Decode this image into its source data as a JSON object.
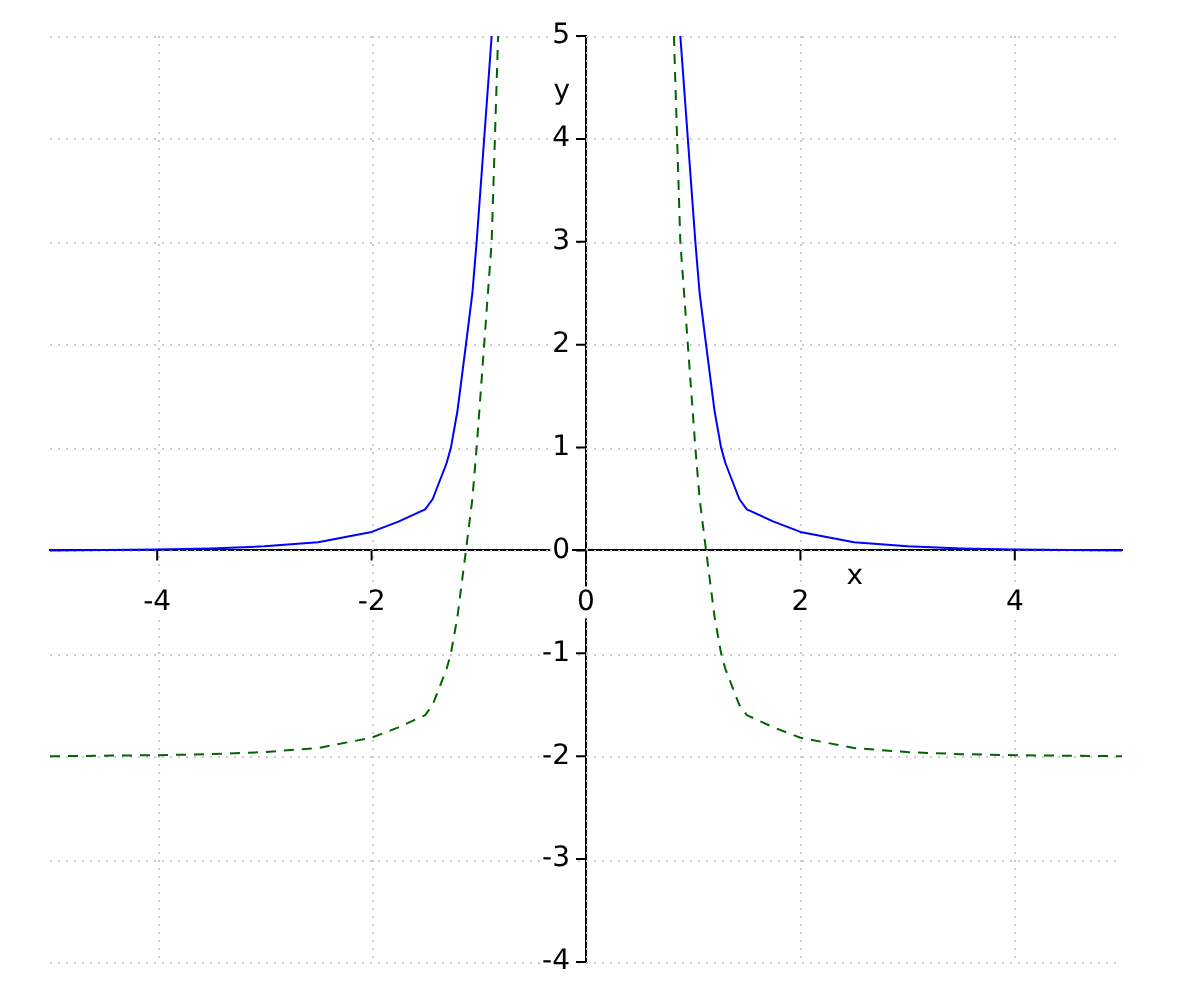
{
  "chart_data": {
    "type": "line",
    "xlabel": "x",
    "ylabel": "y",
    "xlim": [
      -5,
      5
    ],
    "ylim": [
      -4,
      5
    ],
    "xticks": [
      -4,
      -2,
      0,
      2,
      4
    ],
    "yticks": [
      -4,
      -3,
      -2,
      -1,
      0,
      1,
      2,
      3,
      4,
      5
    ],
    "grid": true,
    "legend": false,
    "marker": "none",
    "series": [
      {
        "color": "#0000ff",
        "line_style": "solid",
        "x": [
          -5,
          -4,
          -3.5,
          -3,
          -2.5,
          -2,
          -1.75,
          -1.5,
          -1.43,
          -1.3,
          -1.26,
          -1.2,
          -1.12,
          -1.06,
          -1.02,
          -0.95,
          -0.88,
          0,
          0.88,
          0.95,
          1.02,
          1.06,
          1.12,
          1.2,
          1.26,
          1.3,
          1.43,
          1.5,
          1.75,
          2,
          2.5,
          3,
          3.5,
          4,
          5
        ],
        "values": [
          0,
          0.01,
          0.02,
          0.04,
          0.08,
          0.18,
          0.28,
          0.4,
          0.5,
          0.85,
          1,
          1.35,
          2,
          2.5,
          3,
          4,
          5,
          null,
          5,
          4,
          3,
          2.5,
          2,
          1.35,
          1,
          0.85,
          0.5,
          0.4,
          0.28,
          0.18,
          0.08,
          0.04,
          0.02,
          0.01,
          0
        ]
      },
      {
        "color": "#006400",
        "line_style": "dashed",
        "x": [
          -5,
          -4,
          -3.5,
          -3,
          -2.5,
          -2,
          -1.75,
          -1.5,
          -1.43,
          -1.3,
          -1.26,
          -1.2,
          -1.12,
          -1.06,
          -1.02,
          -0.95,
          -0.88,
          -0.85,
          -0.82,
          0,
          0.82,
          0.85,
          0.88,
          0.95,
          1.02,
          1.06,
          1.12,
          1.2,
          1.26,
          1.3,
          1.43,
          1.5,
          1.75,
          2,
          2.5,
          3,
          3.5,
          4,
          5
        ],
        "values": [
          -2,
          -1.99,
          -1.98,
          -1.96,
          -1.92,
          -1.82,
          -1.72,
          -1.6,
          -1.5,
          -1.15,
          -1,
          -0.65,
          0,
          0.5,
          1,
          2,
          3,
          4,
          5,
          null,
          5,
          4,
          3,
          2,
          1,
          0.5,
          0,
          -0.65,
          -1,
          -1.15,
          -1.5,
          -1.6,
          -1.72,
          -1.82,
          -1.92,
          -1.96,
          -1.98,
          -1.99,
          -2
        ]
      }
    ]
  }
}
